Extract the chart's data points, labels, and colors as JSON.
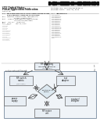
{
  "background": "#ffffff",
  "text_color": "#333333",
  "dark_text": "#111111",
  "gray_text": "#666666",
  "light_gray_text": "#999999",
  "box_fill": "#e8eef4",
  "box_edge": "#666666",
  "diamond_fill": "#dce8f0",
  "outer_box_fill": "#f0f4f8",
  "outer_box_edge": "#8899aa",
  "inner_box_fill": "#eef2f6",
  "inner_box_edge": "#8899aa",
  "arrow_color": "#444444",
  "barcode_color": "#111111",
  "line_color": "#aaaaaa",
  "divider_color": "#bbbbbb"
}
